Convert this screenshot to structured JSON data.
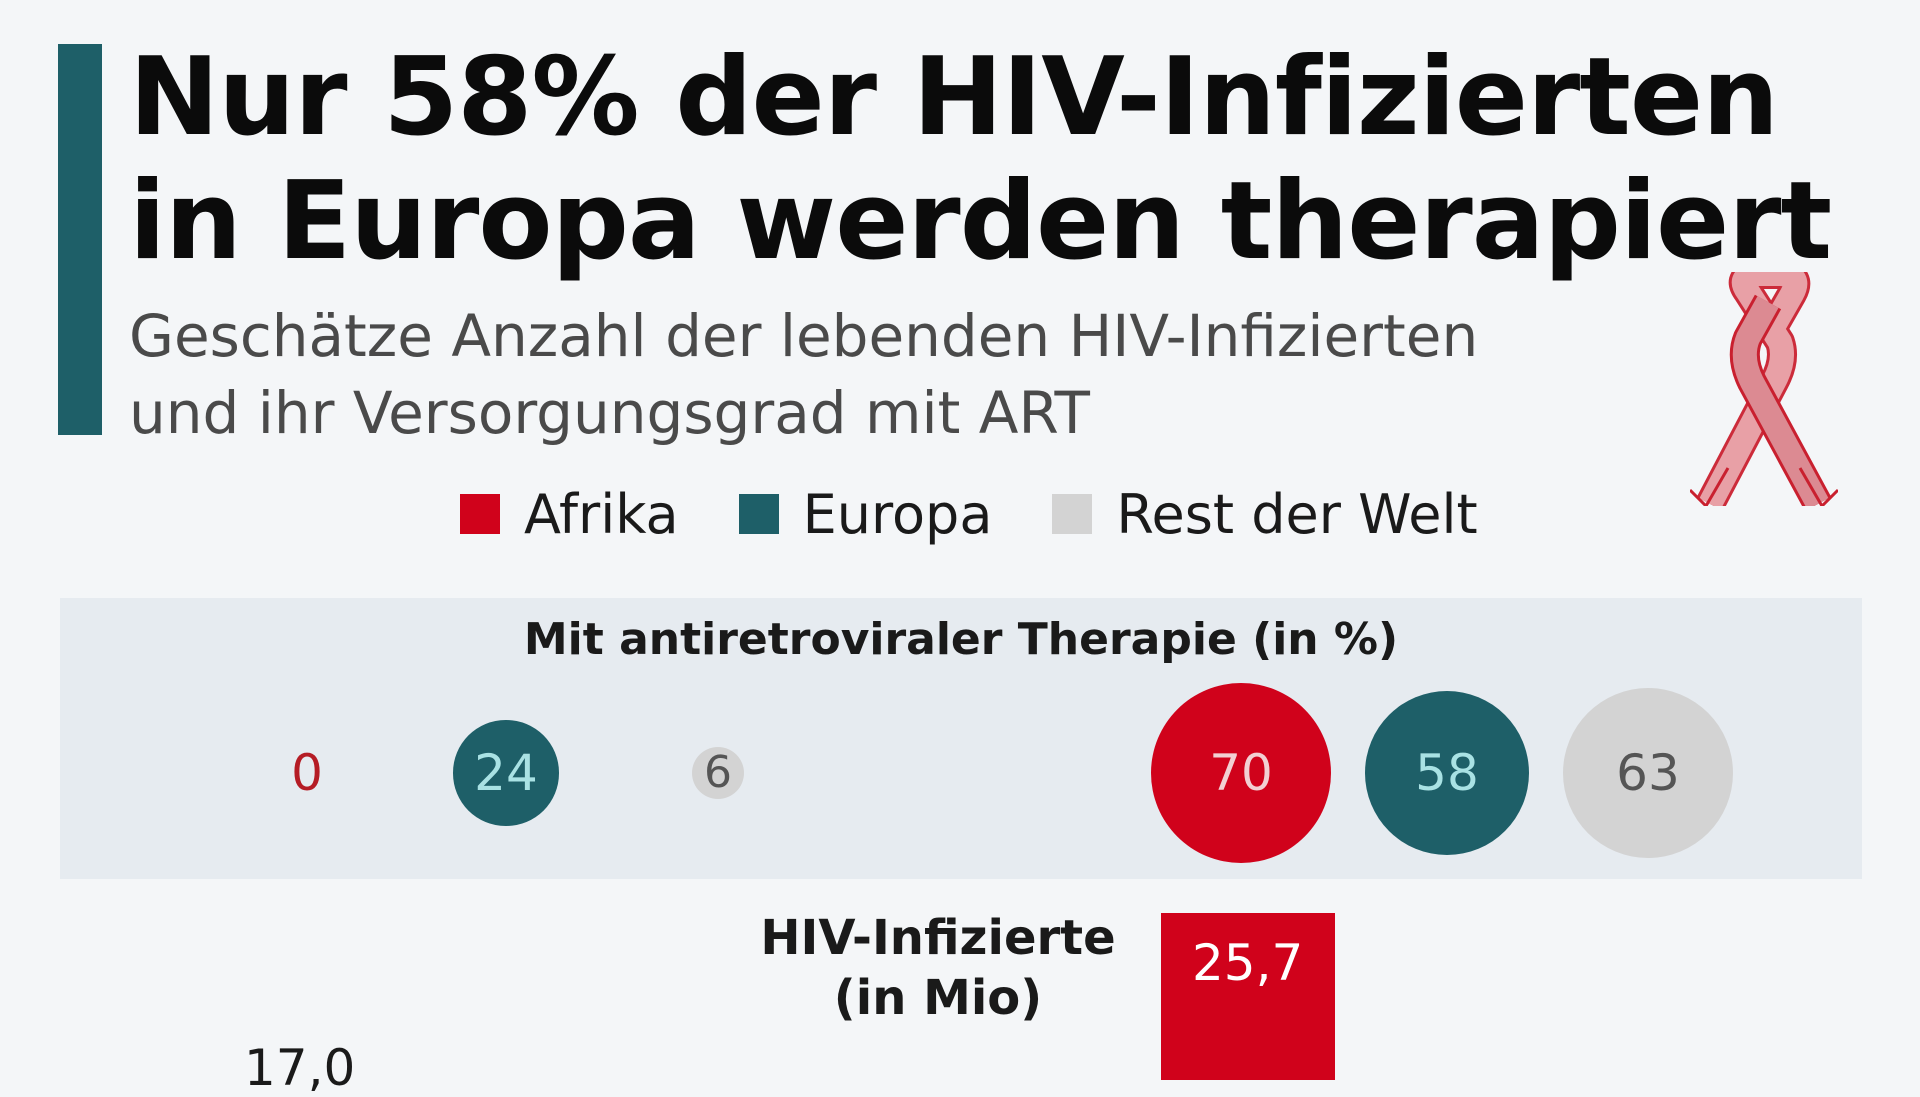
{
  "title": {
    "line1": "Nur 58% der HIV-Infizierten",
    "line2": "in Europa werden therapiert"
  },
  "subtitle": {
    "line1": "Geschätze Anzahl der lebenden HIV-Infizierten",
    "line2": "und ihr Versorgungsgrad mit ART"
  },
  "icons": {
    "ribbon": "aids-awareness-ribbon-icon"
  },
  "legend": [
    {
      "label": "Afrika",
      "color": "#d0021b"
    },
    {
      "label": "Europa",
      "color": "#1e5f68"
    },
    {
      "label": "Rest der Welt",
      "color": "#d3d3d3"
    }
  ],
  "chart_data": {
    "type": "bubble-and-bar",
    "groups": [
      {
        "art_percent": {
          "Afrika": 0,
          "Europa": 24,
          "Rest der Welt": 6
        }
      },
      {
        "art_percent": {
          "Afrika": 70,
          "Europa": 58,
          "Rest der Welt": 63
        }
      }
    ],
    "art_section_title": "Mit antiretroviraler Therapie (in %)",
    "hiv_section_title": {
      "line1": "HIV-Infizierte",
      "line2": "(in Mio)"
    },
    "hiv_bars": [
      {
        "group": 0,
        "series": "Afrika",
        "value": 17.0,
        "label": "17,0"
      },
      {
        "group": 1,
        "series": "Afrika",
        "value": 25.7,
        "label": "25,7"
      }
    ]
  }
}
